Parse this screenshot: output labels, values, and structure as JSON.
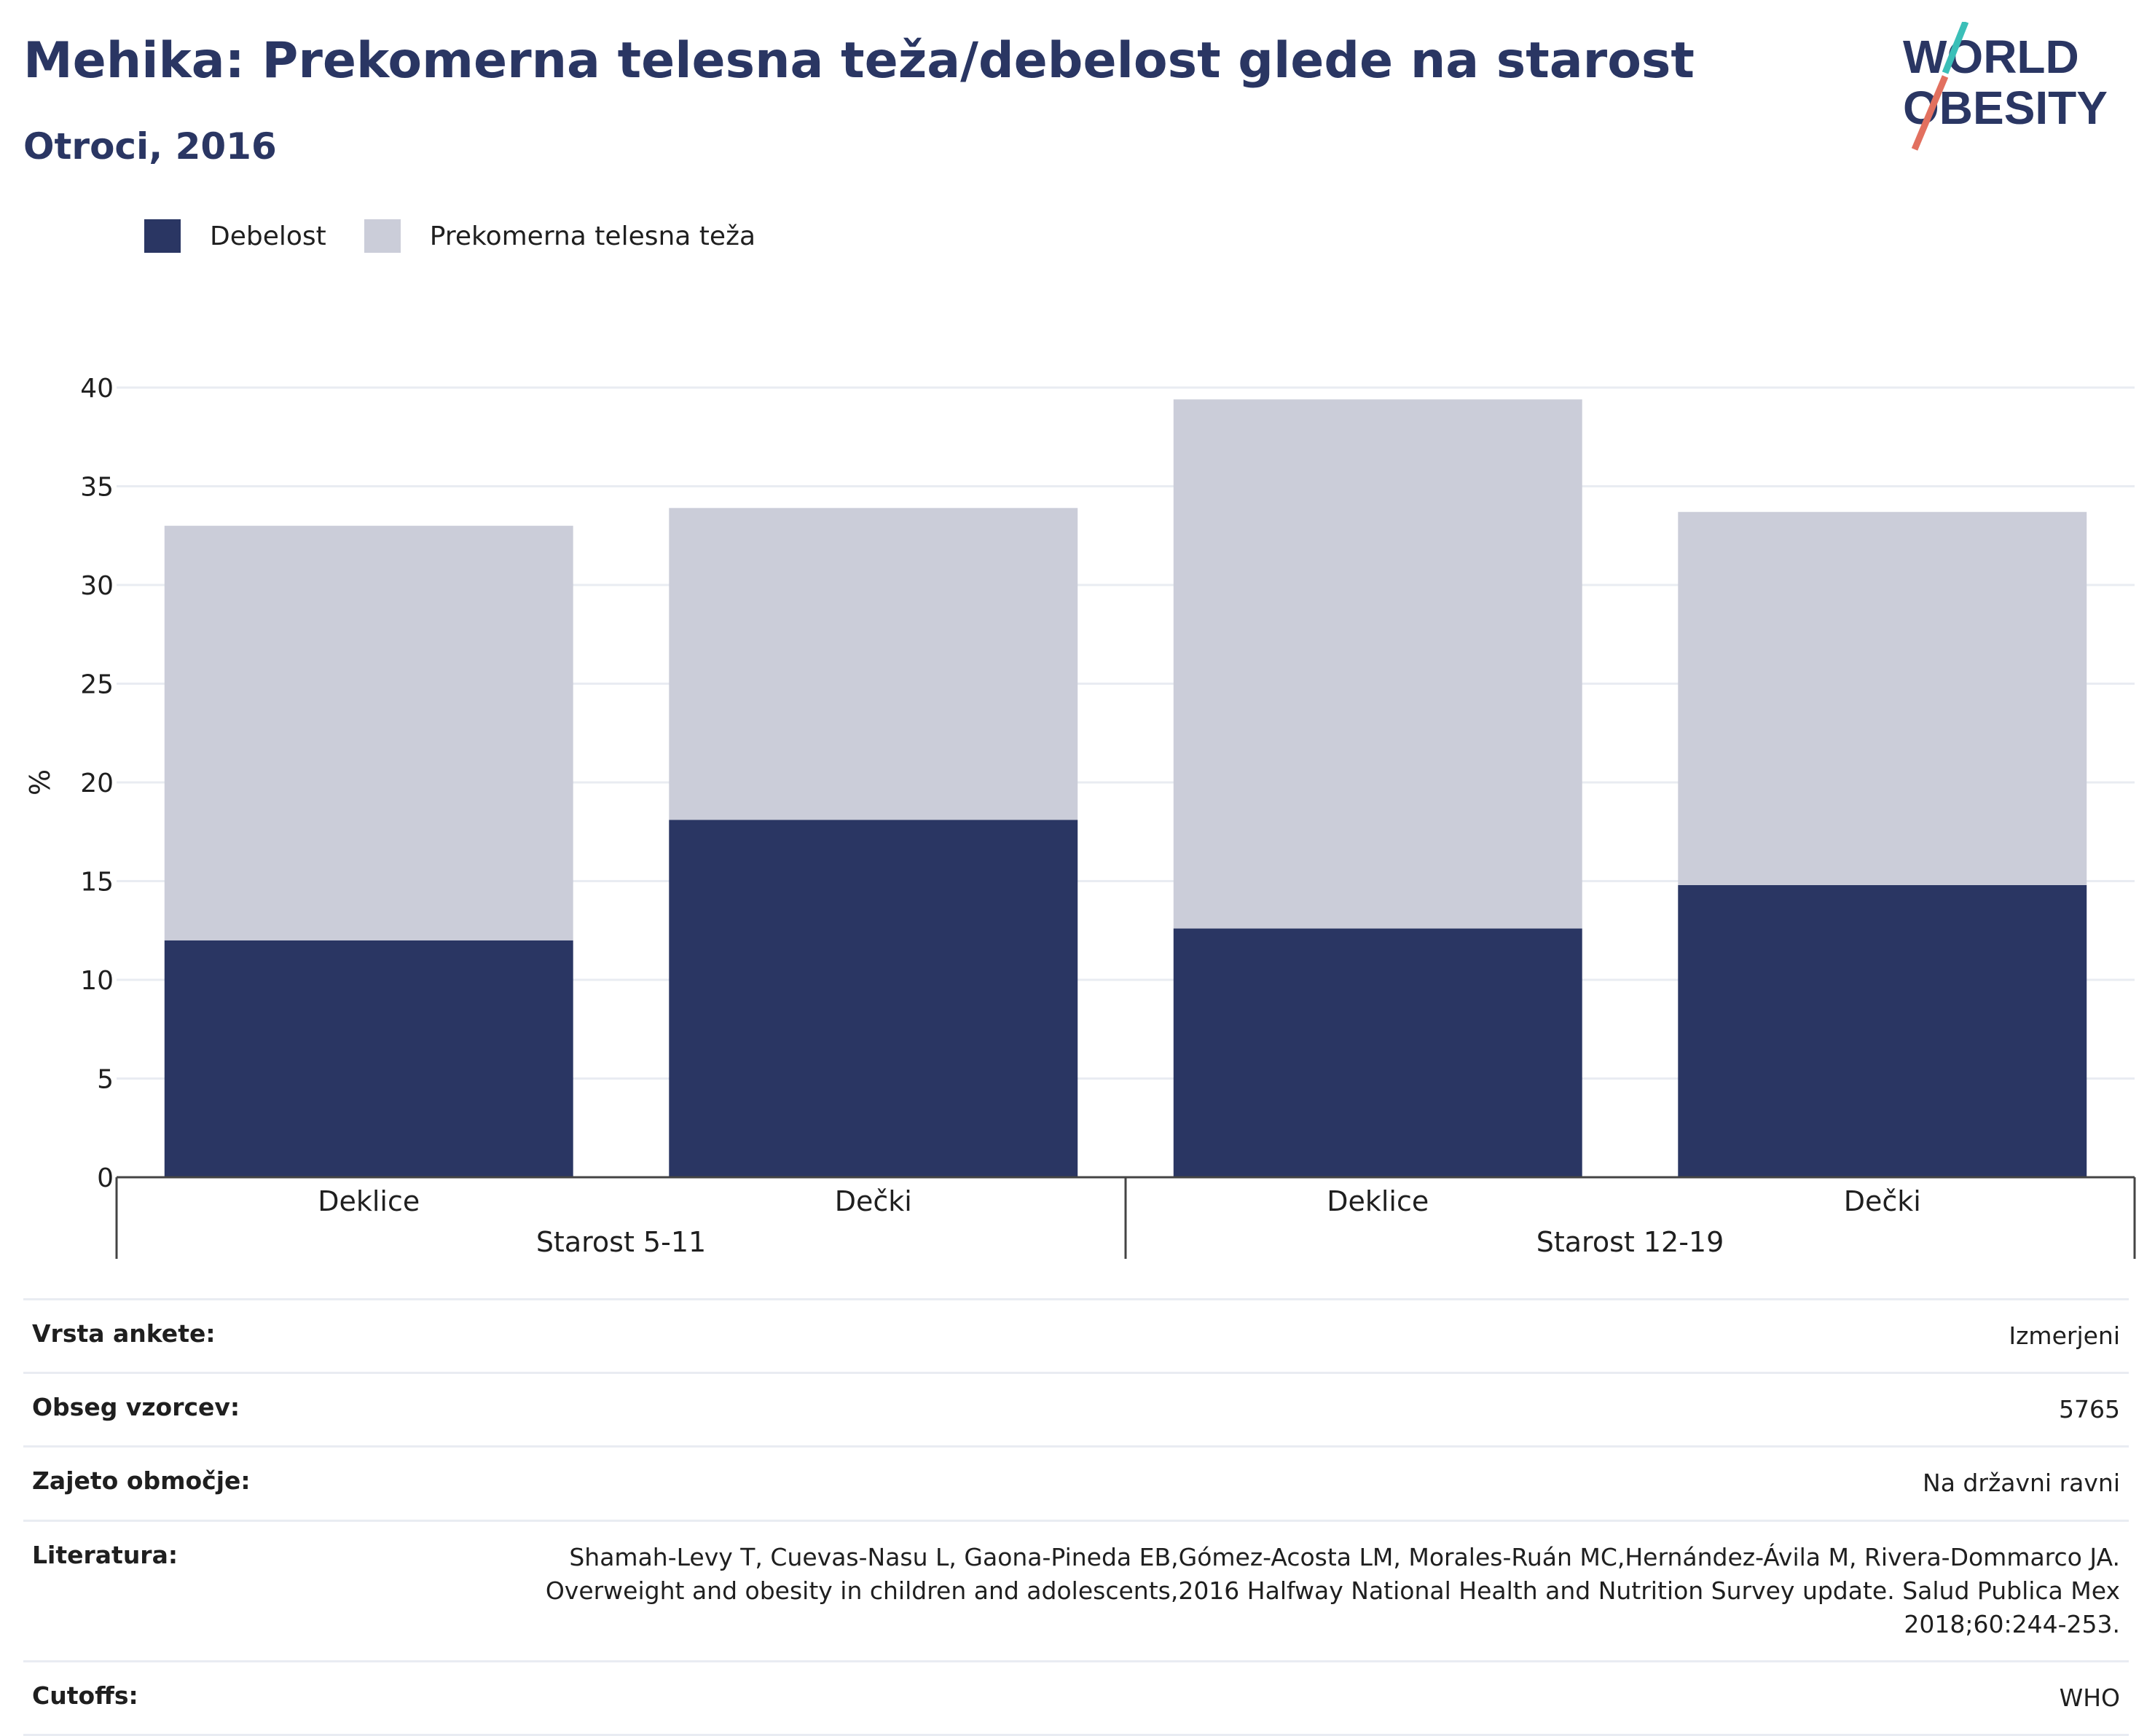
{
  "header": {
    "title": "Mehika: Prekomerna telesna teža/debelost glede na starost",
    "subtitle": "Otroci, 2016"
  },
  "logo": {
    "line1": "WORLD",
    "line2": "OBESITY",
    "colors": {
      "text": "#2a3663",
      "teal": "#3bbfb8",
      "coral": "#e2705f"
    }
  },
  "legend": [
    {
      "label": "Debelost",
      "color": "#2a3663"
    },
    {
      "label": "Prekomerna telesna teža",
      "color": "#cbcdd9"
    }
  ],
  "chart_data": {
    "type": "bar",
    "stacked": true,
    "ylabel": "%",
    "ylim": [
      0,
      40
    ],
    "yticks": [
      0,
      5,
      10,
      15,
      20,
      25,
      30,
      35,
      40
    ],
    "grid": true,
    "legend_position": "top-left",
    "groups": [
      {
        "label": "Starost 5-11",
        "categories": [
          "Deklice",
          "Dečki"
        ]
      },
      {
        "label": "Starost 12-19",
        "categories": [
          "Deklice",
          "Dečki"
        ]
      }
    ],
    "categories": [
      "Deklice",
      "Dečki",
      "Deklice",
      "Dečki"
    ],
    "series": [
      {
        "name": "Debelost",
        "color": "#2a3663",
        "values": [
          12.0,
          18.1,
          12.6,
          14.8
        ]
      },
      {
        "name": "Prekomerna telesna teža",
        "color": "#cbcdd9",
        "values": [
          21.0,
          15.8,
          26.8,
          18.9
        ]
      }
    ]
  },
  "info": [
    {
      "label": "Vrsta ankete:",
      "value": "Izmerjeni"
    },
    {
      "label": "Obseg vzorcev:",
      "value": "5765"
    },
    {
      "label": "Zajeto območje:",
      "value": "Na državni ravni"
    },
    {
      "label": "Literatura:",
      "value": "Shamah-Levy T, Cuevas-Nasu L, Gaona-Pineda EB,Gómez-Acosta LM, Morales-Ruán MC,Hernández-Ávila M, Rivera-Dommarco JA. Overweight and obesity in children and adolescents,2016 Halfway National Health and Nutrition Survey update. Salud Publica Mex 2018;60:244-253."
    },
    {
      "label": "Cutoffs:",
      "value": "WHO"
    }
  ]
}
